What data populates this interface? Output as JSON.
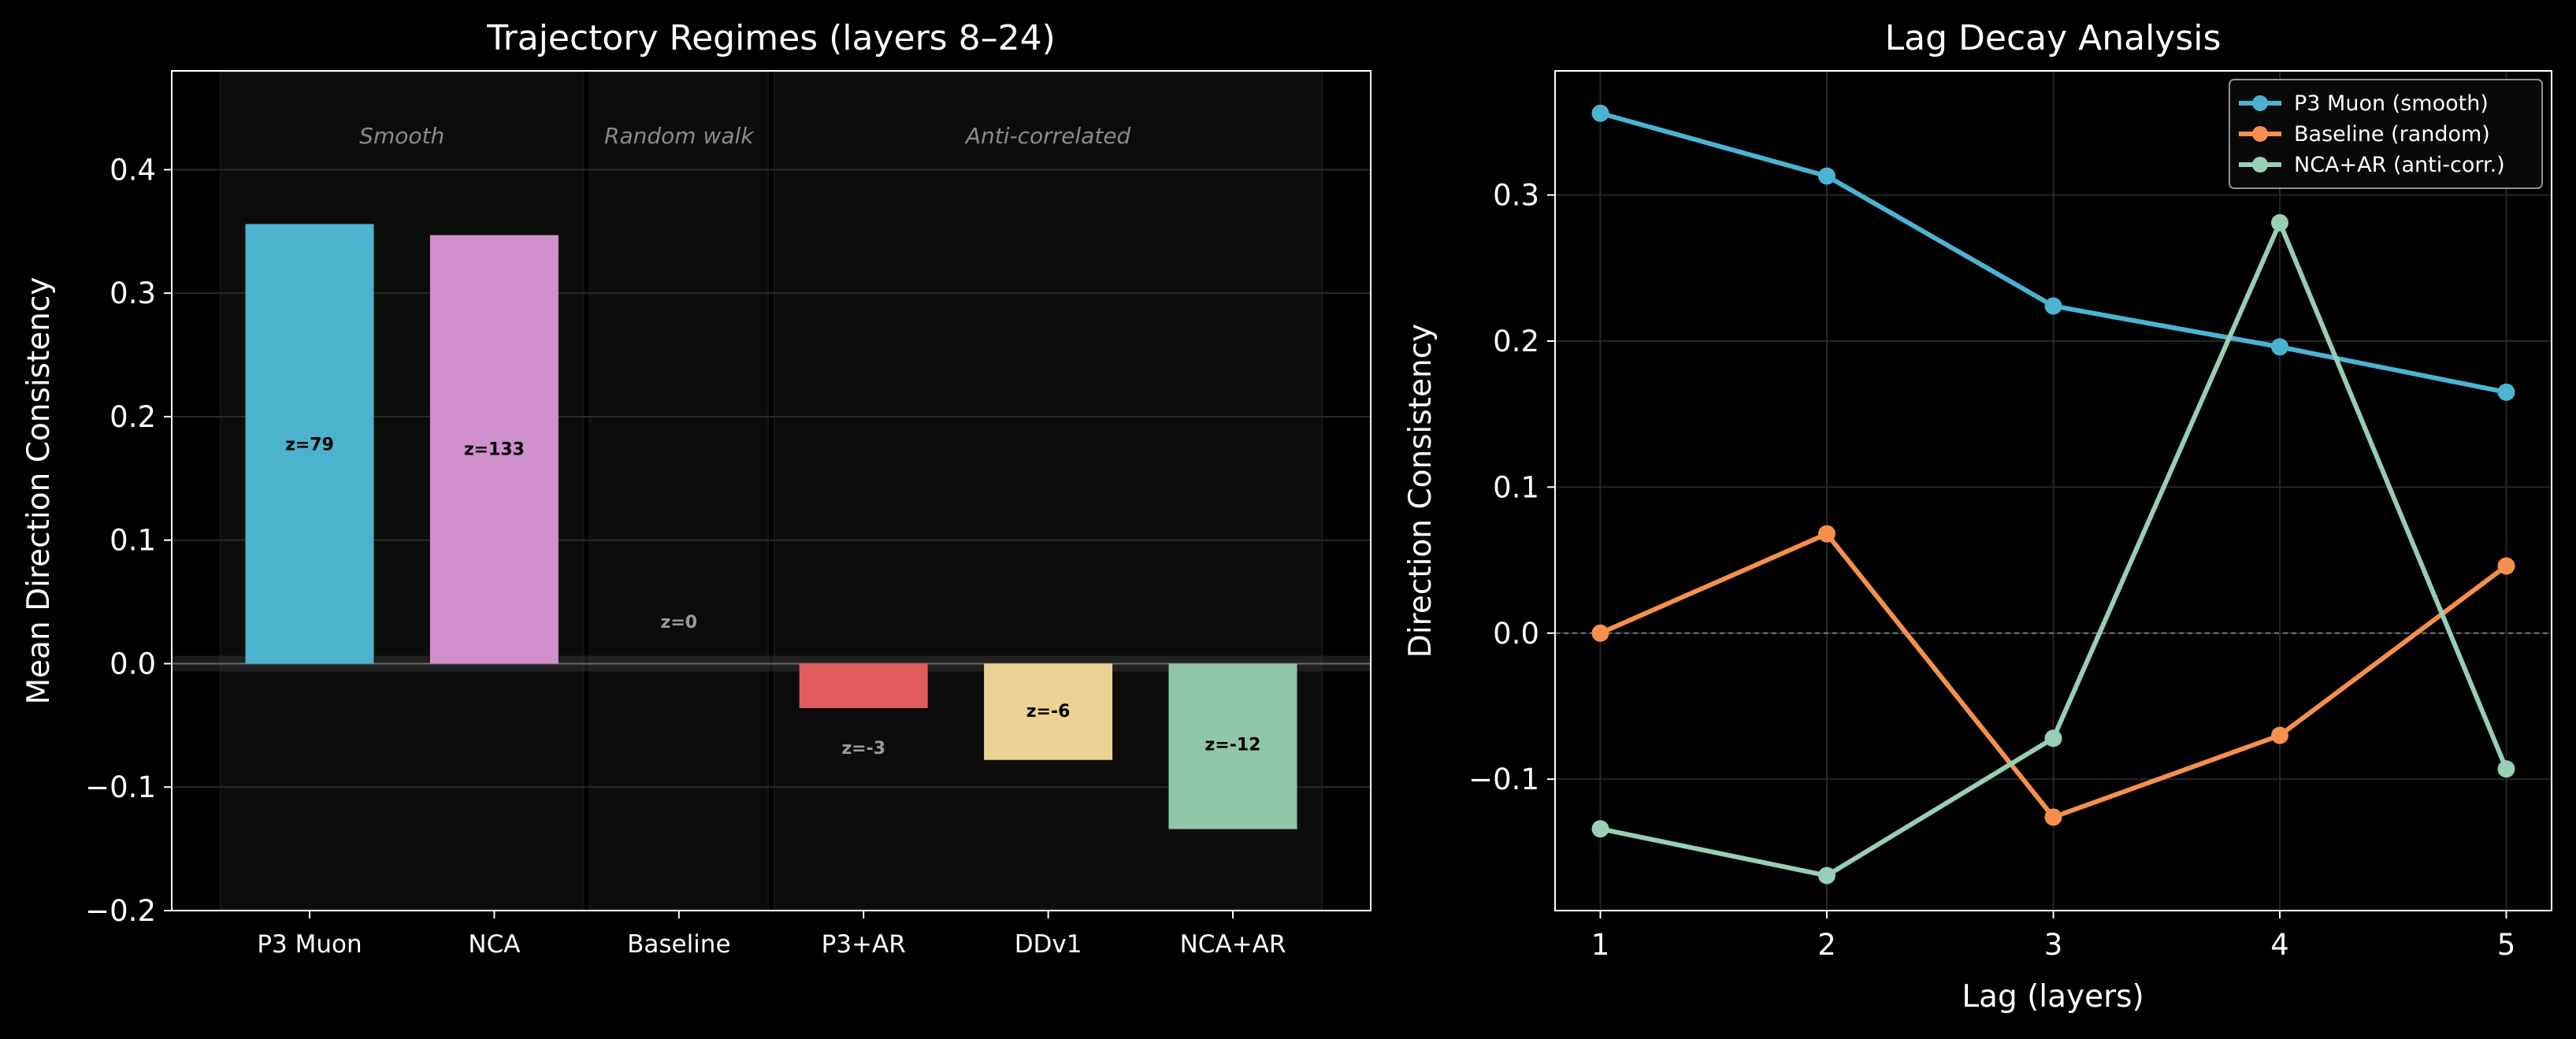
{
  "chart_data": [
    {
      "type": "bar",
      "title": "Trajectory Regimes (layers 8–24)",
      "xlabel": "",
      "ylabel": "Mean Direction Consistency",
      "ylim": [
        -0.2,
        0.48
      ],
      "yticks": [
        "−0.2",
        "−0.1",
        "0.0",
        "0.1",
        "0.2",
        "0.3",
        "0.4"
      ],
      "ytick_values": [
        -0.2,
        -0.1,
        0.0,
        0.1,
        0.2,
        0.3,
        0.4
      ],
      "grid": true,
      "categories": [
        "P3 Muon",
        "NCA",
        "Baseline",
        "P3+AR",
        "DDv1",
        "NCA+AR"
      ],
      "values": [
        0.356,
        0.347,
        0.0,
        -0.036,
        -0.078,
        -0.134
      ],
      "colors": [
        "#4bb3cd",
        "#cf90cc",
        "#888888",
        "#e35c5c",
        "#ebd394",
        "#90c6a8"
      ],
      "z_labels": [
        "z=79",
        "z=133",
        "z=0",
        "z=-3",
        "z=-6",
        "z=-12"
      ],
      "z_label_values": [
        0.178,
        0.174,
        0.034,
        -0.068,
        -0.038,
        -0.065
      ],
      "regions": [
        {
          "label": "Smooth",
          "range": [
            0,
            1
          ]
        },
        {
          "label": "Random walk",
          "range": [
            2,
            2
          ]
        },
        {
          "label": "Anti-correlated",
          "range": [
            3,
            5
          ]
        }
      ]
    },
    {
      "type": "line",
      "title": "Lag Decay Analysis",
      "xlabel": "Lag (layers)",
      "ylabel": "Direction Consistency",
      "x": [
        1,
        2,
        3,
        4,
        5
      ],
      "xlim": [
        0.8,
        5.2
      ],
      "ylim": [
        -0.19,
        0.385
      ],
      "yticks": [
        "−0.1",
        "0.0",
        "0.1",
        "0.2",
        "0.3"
      ],
      "ytick_values": [
        -0.1,
        0.0,
        0.1,
        0.2,
        0.3
      ],
      "grid": true,
      "legend": "top-right",
      "series": [
        {
          "name": "P3 Muon (smooth)",
          "color": "#4bb3d2",
          "values": [
            0.356,
            0.313,
            0.224,
            0.196,
            0.165
          ]
        },
        {
          "name": "Baseline (random)",
          "color": "#f68f4c",
          "values": [
            0.0,
            0.068,
            -0.126,
            -0.07,
            0.046
          ]
        },
        {
          "name": "NCA+AR (anti-corr.)",
          "color": "#96cfb3",
          "values": [
            -0.134,
            -0.166,
            -0.072,
            0.281,
            -0.093
          ]
        }
      ]
    }
  ]
}
